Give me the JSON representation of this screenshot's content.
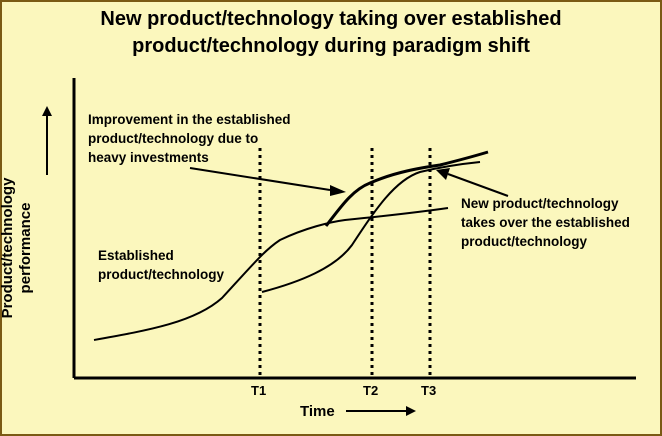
{
  "title": {
    "line1": "New product/technology taking over established",
    "line2": "product/technology during paradigm shift"
  },
  "axes": {
    "y_label_line1": "Product/technology",
    "y_label_line2": "performance",
    "x_label": "Time",
    "ticks": [
      "T1",
      "T2",
      "T3"
    ]
  },
  "annotations": {
    "improvement": [
      "Improvement in the established",
      "product/technology due to",
      "heavy investments"
    ],
    "established": [
      "Established",
      "product/technology"
    ],
    "new_tech": [
      "New product/technology",
      "takes over the established",
      "product/technology"
    ]
  },
  "colors": {
    "background": "#fbf7bd",
    "border": "#7a5a14",
    "ink": "#000000"
  }
}
